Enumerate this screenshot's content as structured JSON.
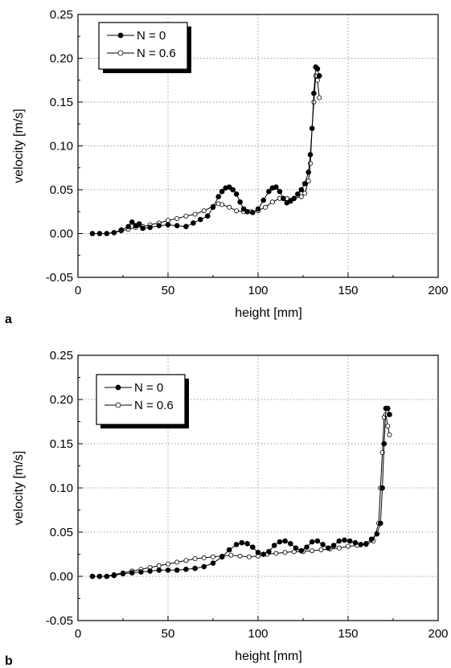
{
  "chart_data": [
    {
      "type": "scatter",
      "panel_label": "a",
      "xlabel": "height [mm]",
      "ylabel": "velocity [m/s]",
      "xlim": [
        0,
        200
      ],
      "ylim": [
        -0.05,
        0.25
      ],
      "xticks": [
        0,
        50,
        100,
        150,
        200
      ],
      "yticks": [
        -0.05,
        0.0,
        0.05,
        0.1,
        0.15,
        0.2,
        0.25
      ],
      "xtick_labels": [
        "0",
        "50",
        "100",
        "150",
        "200"
      ],
      "ytick_labels": [
        "-0.05",
        "0.00",
        "0.05",
        "0.10",
        "0.15",
        "0.20",
        "0.25"
      ],
      "grid": true,
      "legend_position": "top-left",
      "series": [
        {
          "name": "N = 0",
          "marker": "filled-circle",
          "color": "#000000",
          "points": [
            [
              8,
              0.0
            ],
            [
              12,
              0.0
            ],
            [
              16,
              0.0
            ],
            [
              20,
              0.001
            ],
            [
              24,
              0.004
            ],
            [
              28,
              0.008
            ],
            [
              30,
              0.013
            ],
            [
              32,
              0.009
            ],
            [
              34,
              0.011
            ],
            [
              36,
              0.006
            ],
            [
              40,
              0.007
            ],
            [
              45,
              0.009
            ],
            [
              50,
              0.01
            ],
            [
              55,
              0.009
            ],
            [
              60,
              0.008
            ],
            [
              64,
              0.012
            ],
            [
              68,
              0.016
            ],
            [
              72,
              0.02
            ],
            [
              75,
              0.03
            ],
            [
              78,
              0.042
            ],
            [
              80,
              0.048
            ],
            [
              82,
              0.052
            ],
            [
              84,
              0.053
            ],
            [
              86,
              0.05
            ],
            [
              88,
              0.045
            ],
            [
              90,
              0.036
            ],
            [
              92,
              0.028
            ],
            [
              94,
              0.025
            ],
            [
              97,
              0.024
            ],
            [
              100,
              0.028
            ],
            [
              103,
              0.038
            ],
            [
              106,
              0.048
            ],
            [
              108,
              0.052
            ],
            [
              110,
              0.053
            ],
            [
              112,
              0.048
            ],
            [
              114,
              0.04
            ],
            [
              116,
              0.035
            ],
            [
              118,
              0.037
            ],
            [
              120,
              0.04
            ],
            [
              122,
              0.045
            ],
            [
              124,
              0.05
            ],
            [
              126,
              0.057
            ],
            [
              128,
              0.07
            ],
            [
              129,
              0.09
            ],
            [
              130,
              0.12
            ],
            [
              131,
              0.16
            ],
            [
              132,
              0.19
            ],
            [
              133,
              0.188
            ],
            [
              134,
              0.18
            ]
          ]
        },
        {
          "name": "N = 0.6",
          "marker": "open-circle",
          "color": "#000000",
          "points": [
            [
              8,
              0.0
            ],
            [
              12,
              0.0
            ],
            [
              16,
              0.0
            ],
            [
              20,
              0.001
            ],
            [
              24,
              0.003
            ],
            [
              28,
              0.005
            ],
            [
              32,
              0.007
            ],
            [
              36,
              0.008
            ],
            [
              40,
              0.01
            ],
            [
              45,
              0.012
            ],
            [
              50,
              0.015
            ],
            [
              55,
              0.017
            ],
            [
              60,
              0.02
            ],
            [
              65,
              0.022
            ],
            [
              70,
              0.026
            ],
            [
              75,
              0.031
            ],
            [
              78,
              0.034
            ],
            [
              80,
              0.033
            ],
            [
              84,
              0.03
            ],
            [
              88,
              0.026
            ],
            [
              92,
              0.025
            ],
            [
              96,
              0.025
            ],
            [
              100,
              0.026
            ],
            [
              104,
              0.03
            ],
            [
              108,
              0.036
            ],
            [
              112,
              0.04
            ],
            [
              116,
              0.04
            ],
            [
              120,
              0.04
            ],
            [
              124,
              0.042
            ],
            [
              126,
              0.046
            ],
            [
              128,
              0.06
            ],
            [
              129,
              0.08
            ],
            [
              130,
              0.12
            ],
            [
              131,
              0.15
            ],
            [
              132,
              0.18
            ],
            [
              133,
              0.175
            ],
            [
              134,
              0.155
            ]
          ]
        }
      ]
    },
    {
      "type": "scatter",
      "panel_label": "b",
      "xlabel": "height [mm]",
      "ylabel": "velocity [m/s]",
      "xlim": [
        0,
        200
      ],
      "ylim": [
        -0.05,
        0.25
      ],
      "xticks": [
        0,
        50,
        100,
        150,
        200
      ],
      "yticks": [
        -0.05,
        0.0,
        0.05,
        0.1,
        0.15,
        0.2,
        0.25
      ],
      "xtick_labels": [
        "0",
        "50",
        "100",
        "150",
        "200"
      ],
      "ytick_labels": [
        "-0.05",
        "0.00",
        "0.05",
        "0.10",
        "0.15",
        "0.20",
        "0.25"
      ],
      "grid": true,
      "legend_position": "top-left",
      "series": [
        {
          "name": "N = 0",
          "marker": "filled-circle",
          "color": "#000000",
          "points": [
            [
              8,
              0.0
            ],
            [
              12,
              0.0
            ],
            [
              16,
              0.0
            ],
            [
              20,
              0.001
            ],
            [
              25,
              0.003
            ],
            [
              30,
              0.004
            ],
            [
              35,
              0.005
            ],
            [
              40,
              0.006
            ],
            [
              45,
              0.007
            ],
            [
              50,
              0.007
            ],
            [
              55,
              0.007
            ],
            [
              60,
              0.008
            ],
            [
              65,
              0.009
            ],
            [
              70,
              0.011
            ],
            [
              75,
              0.015
            ],
            [
              80,
              0.022
            ],
            [
              84,
              0.03
            ],
            [
              88,
              0.036
            ],
            [
              91,
              0.038
            ],
            [
              94,
              0.037
            ],
            [
              97,
              0.033
            ],
            [
              100,
              0.027
            ],
            [
              103,
              0.025
            ],
            [
              106,
              0.028
            ],
            [
              109,
              0.035
            ],
            [
              112,
              0.039
            ],
            [
              115,
              0.04
            ],
            [
              118,
              0.037
            ],
            [
              121,
              0.032
            ],
            [
              124,
              0.029
            ],
            [
              127,
              0.033
            ],
            [
              130,
              0.039
            ],
            [
              133,
              0.04
            ],
            [
              136,
              0.036
            ],
            [
              139,
              0.032
            ],
            [
              142,
              0.035
            ],
            [
              145,
              0.04
            ],
            [
              148,
              0.041
            ],
            [
              151,
              0.04
            ],
            [
              154,
              0.038
            ],
            [
              157,
              0.036
            ],
            [
              160,
              0.037
            ],
            [
              163,
              0.042
            ],
            [
              166,
              0.048
            ],
            [
              168,
              0.06
            ],
            [
              169,
              0.1
            ],
            [
              170,
              0.15
            ],
            [
              171,
              0.19
            ],
            [
              172,
              0.19
            ],
            [
              173,
              0.183
            ]
          ]
        },
        {
          "name": "N = 0.6",
          "marker": "open-circle",
          "color": "#000000",
          "points": [
            [
              8,
              0.0
            ],
            [
              12,
              0.0
            ],
            [
              16,
              0.0
            ],
            [
              20,
              0.002
            ],
            [
              25,
              0.004
            ],
            [
              30,
              0.006
            ],
            [
              35,
              0.008
            ],
            [
              40,
              0.01
            ],
            [
              45,
              0.012
            ],
            [
              50,
              0.014
            ],
            [
              55,
              0.016
            ],
            [
              60,
              0.018
            ],
            [
              65,
              0.02
            ],
            [
              70,
              0.021
            ],
            [
              75,
              0.022
            ],
            [
              80,
              0.023
            ],
            [
              85,
              0.024
            ],
            [
              90,
              0.023
            ],
            [
              95,
              0.022
            ],
            [
              100,
              0.023
            ],
            [
              105,
              0.025
            ],
            [
              110,
              0.026
            ],
            [
              115,
              0.027
            ],
            [
              120,
              0.028
            ],
            [
              125,
              0.028
            ],
            [
              130,
              0.029
            ],
            [
              135,
              0.03
            ],
            [
              140,
              0.031
            ],
            [
              145,
              0.032
            ],
            [
              150,
              0.034
            ],
            [
              155,
              0.035
            ],
            [
              160,
              0.036
            ],
            [
              164,
              0.04
            ],
            [
              167,
              0.06
            ],
            [
              168,
              0.1
            ],
            [
              169,
              0.14
            ],
            [
              170,
              0.18
            ],
            [
              171,
              0.183
            ],
            [
              172,
              0.17
            ],
            [
              173,
              0.16
            ]
          ]
        }
      ]
    }
  ]
}
